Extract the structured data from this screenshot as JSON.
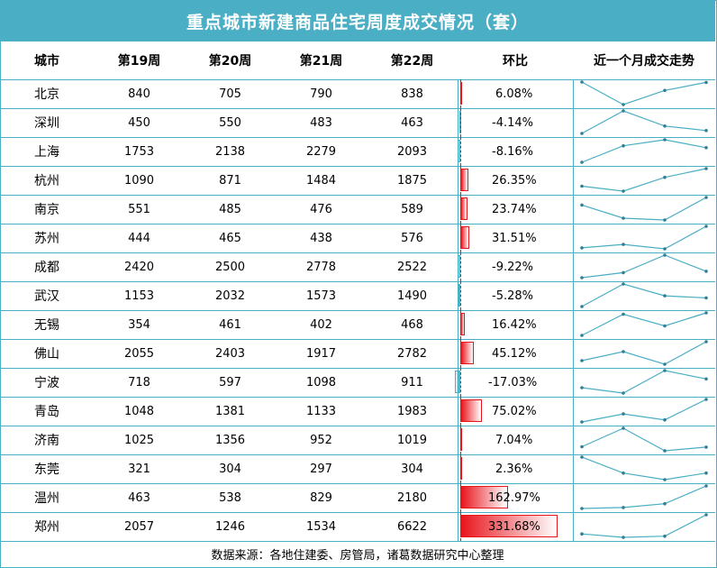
{
  "title": "重点城市新建商品住宅周度成交情况（套）",
  "headers": {
    "city": "城市",
    "w19": "第19周",
    "w20": "第20周",
    "w21": "第21周",
    "w22": "第22周",
    "change": "环比",
    "trend": "近一个月成交走势"
  },
  "footer": "数据来源：各地住建委、房管局，诸葛数据研究中心整理",
  "colors": {
    "header_bg": "#4aaec4",
    "border": "#4aaec4",
    "positive_bar": "#e8141c",
    "negative_bar": "#4aaec4",
    "sparkline": "#4aaec4"
  },
  "chart_data": {
    "type": "table",
    "columns": [
      "城市",
      "第19周",
      "第20周",
      "第21周",
      "第22周",
      "环比",
      "近一个月成交走势"
    ],
    "rows": [
      {
        "city": "北京",
        "values": [
          840,
          705,
          790,
          838
        ],
        "change": 6.08,
        "change_label": "6.08%"
      },
      {
        "city": "深圳",
        "values": [
          450,
          550,
          483,
          463
        ],
        "change": -4.14,
        "change_label": "-4.14%"
      },
      {
        "city": "上海",
        "values": [
          1753,
          2138,
          2279,
          2093
        ],
        "change": -8.16,
        "change_label": "-8.16%"
      },
      {
        "city": "杭州",
        "values": [
          1090,
          871,
          1484,
          1875
        ],
        "change": 26.35,
        "change_label": "26.35%"
      },
      {
        "city": "南京",
        "values": [
          551,
          485,
          476,
          589
        ],
        "change": 23.74,
        "change_label": "23.74%"
      },
      {
        "city": "苏州",
        "values": [
          444,
          465,
          438,
          576
        ],
        "change": 31.51,
        "change_label": "31.51%"
      },
      {
        "city": "成都",
        "values": [
          2420,
          2500,
          2778,
          2522
        ],
        "change": -9.22,
        "change_label": "-9.22%"
      },
      {
        "city": "武汉",
        "values": [
          1153,
          2032,
          1573,
          1490
        ],
        "change": -5.28,
        "change_label": "-5.28%"
      },
      {
        "city": "无锡",
        "values": [
          354,
          461,
          402,
          468
        ],
        "change": 16.42,
        "change_label": "16.42%"
      },
      {
        "city": "佛山",
        "values": [
          2055,
          2403,
          1917,
          2782
        ],
        "change": 45.12,
        "change_label": "45.12%"
      },
      {
        "city": "宁波",
        "values": [
          718,
          597,
          1098,
          911
        ],
        "change": -17.03,
        "change_label": "-17.03%"
      },
      {
        "city": "青岛",
        "values": [
          1048,
          1381,
          1133,
          1983
        ],
        "change": 75.02,
        "change_label": "75.02%"
      },
      {
        "city": "济南",
        "values": [
          1025,
          1356,
          952,
          1019
        ],
        "change": 7.04,
        "change_label": "7.04%"
      },
      {
        "city": "东莞",
        "values": [
          321,
          304,
          297,
          304
        ],
        "change": 2.36,
        "change_label": "2.36%"
      },
      {
        "city": "温州",
        "values": [
          463,
          538,
          829,
          2180
        ],
        "change": 162.97,
        "change_label": "162.97%"
      },
      {
        "city": "郑州",
        "values": [
          2057,
          1246,
          1534,
          6622
        ],
        "change": 331.68,
        "change_label": "331.68%"
      }
    ]
  }
}
